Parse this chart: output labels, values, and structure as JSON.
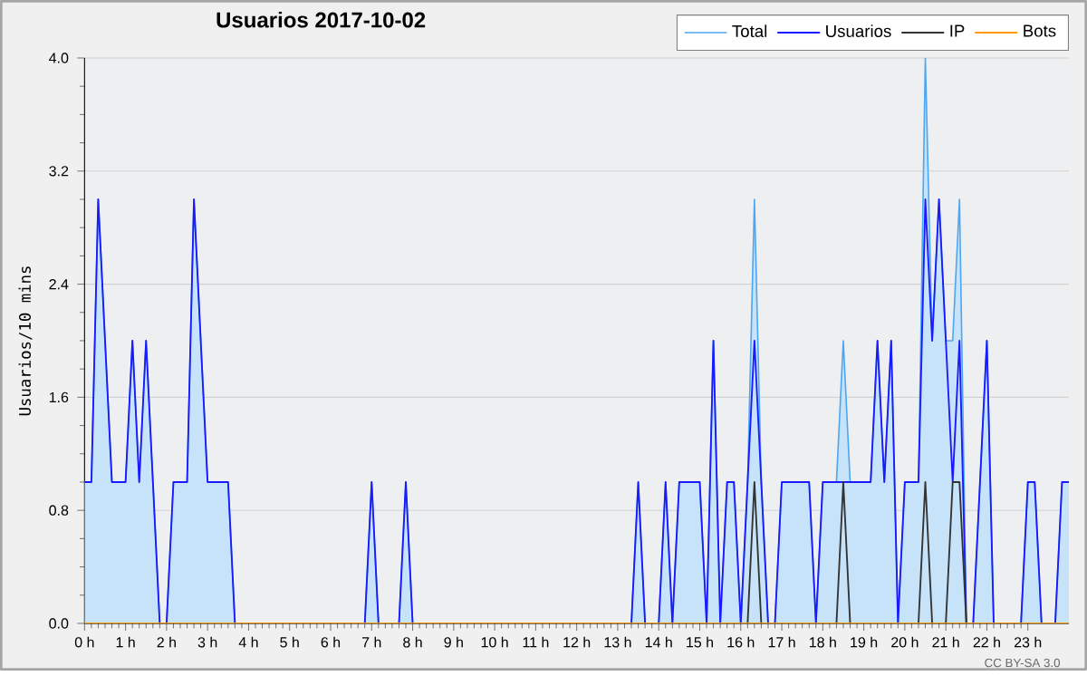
{
  "chart_data": {
    "type": "line",
    "title": "Usuarios  2017-10-02",
    "ylabel": "Usuarios/10 mins",
    "x": [
      0,
      0.167,
      0.333,
      0.5,
      0.667,
      0.833,
      1,
      1.167,
      1.333,
      1.5,
      1.667,
      1.833,
      2,
      2.167,
      2.333,
      2.5,
      2.667,
      2.833,
      3,
      3.167,
      3.333,
      3.5,
      3.667,
      3.833,
      4,
      4.167,
      4.333,
      4.5,
      4.667,
      4.833,
      5,
      5.167,
      5.333,
      5.5,
      5.667,
      5.833,
      6,
      6.167,
      6.333,
      6.5,
      6.667,
      6.833,
      7,
      7.167,
      7.333,
      7.5,
      7.667,
      7.833,
      8,
      8.167,
      8.333,
      8.5,
      8.667,
      8.833,
      9,
      9.167,
      9.333,
      9.5,
      9.667,
      9.833,
      10,
      10.167,
      10.333,
      10.5,
      10.667,
      10.833,
      11,
      11.167,
      11.333,
      11.5,
      11.667,
      11.833,
      12,
      12.167,
      12.333,
      12.5,
      12.667,
      12.833,
      13,
      13.167,
      13.333,
      13.5,
      13.667,
      13.833,
      14,
      14.167,
      14.333,
      14.5,
      14.667,
      14.833,
      15,
      15.167,
      15.333,
      15.5,
      15.667,
      15.833,
      16,
      16.167,
      16.333,
      16.5,
      16.667,
      16.833,
      17,
      17.167,
      17.333,
      17.5,
      17.667,
      17.833,
      18,
      18.167,
      18.333,
      18.5,
      18.667,
      18.833,
      19,
      19.167,
      19.333,
      19.5,
      19.667,
      19.833,
      20,
      20.167,
      20.333,
      20.5,
      20.667,
      20.833,
      21,
      21.167,
      21.333,
      21.5,
      21.667,
      21.833,
      22,
      22.167,
      22.333,
      22.5,
      22.667,
      22.833,
      23,
      23.167,
      23.333,
      23.5,
      23.667,
      23.833,
      24
    ],
    "series": [
      {
        "name": "Total",
        "type": "area",
        "color": "#4ea6f0",
        "values": [
          1,
          1,
          3,
          2,
          1,
          1,
          1,
          2,
          1,
          2,
          1,
          0,
          0,
          1,
          1,
          1,
          3,
          2,
          1,
          1,
          1,
          1,
          0,
          0,
          0,
          0,
          0,
          0,
          0,
          0,
          0,
          0,
          0,
          0,
          0,
          0,
          0,
          0,
          0,
          0,
          0,
          0,
          1,
          0,
          0,
          0,
          0,
          1,
          0,
          0,
          0,
          0,
          0,
          0,
          0,
          0,
          0,
          0,
          0,
          0,
          0,
          0,
          0,
          0,
          0,
          0,
          0,
          0,
          0,
          0,
          0,
          0,
          0,
          0,
          0,
          0,
          0,
          0,
          0,
          0,
          0,
          1,
          0,
          0,
          0,
          1,
          0,
          1,
          1,
          1,
          1,
          0,
          2,
          0,
          1,
          1,
          0,
          1,
          3,
          1,
          0,
          0,
          1,
          1,
          1,
          1,
          1,
          0,
          1,
          1,
          1,
          2,
          1,
          1,
          1,
          1,
          2,
          1,
          2,
          0,
          1,
          1,
          1,
          4,
          2,
          3,
          2,
          2,
          3,
          0,
          0,
          1,
          2,
          0,
          0,
          0,
          0,
          0,
          1,
          1,
          0,
          0,
          0,
          1,
          1
        ]
      },
      {
        "name": "Usuarios",
        "color": "#1a1aff",
        "values": [
          1,
          1,
          3,
          2,
          1,
          1,
          1,
          2,
          1,
          2,
          1,
          0,
          0,
          1,
          1,
          1,
          3,
          2,
          1,
          1,
          1,
          1,
          0,
          0,
          0,
          0,
          0,
          0,
          0,
          0,
          0,
          0,
          0,
          0,
          0,
          0,
          0,
          0,
          0,
          0,
          0,
          0,
          1,
          0,
          0,
          0,
          0,
          1,
          0,
          0,
          0,
          0,
          0,
          0,
          0,
          0,
          0,
          0,
          0,
          0,
          0,
          0,
          0,
          0,
          0,
          0,
          0,
          0,
          0,
          0,
          0,
          0,
          0,
          0,
          0,
          0,
          0,
          0,
          0,
          0,
          0,
          1,
          0,
          0,
          0,
          1,
          0,
          1,
          1,
          1,
          1,
          0,
          2,
          0,
          1,
          1,
          0,
          1,
          2,
          1,
          0,
          0,
          1,
          1,
          1,
          1,
          1,
          0,
          1,
          1,
          1,
          1,
          1,
          1,
          1,
          1,
          2,
          1,
          2,
          0,
          1,
          1,
          1,
          3,
          2,
          3,
          2,
          1,
          2,
          0,
          0,
          1,
          2,
          0,
          0,
          0,
          0,
          0,
          1,
          1,
          0,
          0,
          0,
          1,
          1
        ]
      },
      {
        "name": "IP",
        "color": "#333333",
        "values": [
          0,
          0,
          0,
          0,
          0,
          0,
          0,
          0,
          0,
          0,
          0,
          0,
          0,
          0,
          0,
          0,
          0,
          0,
          0,
          0,
          0,
          0,
          0,
          0,
          0,
          0,
          0,
          0,
          0,
          0,
          0,
          0,
          0,
          0,
          0,
          0,
          0,
          0,
          0,
          0,
          0,
          0,
          0,
          0,
          0,
          0,
          0,
          0,
          0,
          0,
          0,
          0,
          0,
          0,
          0,
          0,
          0,
          0,
          0,
          0,
          0,
          0,
          0,
          0,
          0,
          0,
          0,
          0,
          0,
          0,
          0,
          0,
          0,
          0,
          0,
          0,
          0,
          0,
          0,
          0,
          0,
          0,
          0,
          0,
          0,
          0,
          0,
          0,
          0,
          0,
          0,
          0,
          0,
          0,
          0,
          0,
          0,
          0,
          1,
          0,
          0,
          0,
          0,
          0,
          0,
          0,
          0,
          0,
          0,
          0,
          0,
          1,
          0,
          0,
          0,
          0,
          0,
          0,
          0,
          0,
          0,
          0,
          0,
          1,
          0,
          0,
          0,
          1,
          1,
          0,
          0,
          0,
          0,
          0,
          0,
          0,
          0,
          0,
          0,
          0,
          0,
          0,
          0,
          0,
          0
        ]
      },
      {
        "name": "Bots",
        "color": "#ff9900",
        "values": [
          0,
          0,
          0,
          0,
          0,
          0,
          0,
          0,
          0,
          0,
          0,
          0,
          0,
          0,
          0,
          0,
          0,
          0,
          0,
          0,
          0,
          0,
          0,
          0,
          0,
          0,
          0,
          0,
          0,
          0,
          0,
          0,
          0,
          0,
          0,
          0,
          0,
          0,
          0,
          0,
          0,
          0,
          0,
          0,
          0,
          0,
          0,
          0,
          0,
          0,
          0,
          0,
          0,
          0,
          0,
          0,
          0,
          0,
          0,
          0,
          0,
          0,
          0,
          0,
          0,
          0,
          0,
          0,
          0,
          0,
          0,
          0,
          0,
          0,
          0,
          0,
          0,
          0,
          0,
          0,
          0,
          0,
          0,
          0,
          0,
          0,
          0,
          0,
          0,
          0,
          0,
          0,
          0,
          0,
          0,
          0,
          0,
          0,
          0,
          0,
          0,
          0,
          0,
          0,
          0,
          0,
          0,
          0,
          0,
          0,
          0,
          0,
          0,
          0,
          0,
          0,
          0,
          0,
          0,
          0,
          0,
          0,
          0,
          0,
          0,
          0,
          0,
          0,
          0,
          0,
          0,
          0,
          0,
          0,
          0,
          0,
          0,
          0,
          0,
          0,
          0,
          0,
          0,
          0,
          0
        ]
      }
    ],
    "xlim": [
      0,
      24
    ],
    "xticks": [
      {
        "value": 0,
        "label": "0 h"
      },
      {
        "value": 1,
        "label": "1 h"
      },
      {
        "value": 2,
        "label": "2 h"
      },
      {
        "value": 3,
        "label": "3 h"
      },
      {
        "value": 4,
        "label": "4 h"
      },
      {
        "value": 5,
        "label": "5 h"
      },
      {
        "value": 6,
        "label": "6 h"
      },
      {
        "value": 7,
        "label": "7 h"
      },
      {
        "value": 8,
        "label": "8 h"
      },
      {
        "value": 9,
        "label": "9 h"
      },
      {
        "value": 10,
        "label": "10 h"
      },
      {
        "value": 11,
        "label": "11 h"
      },
      {
        "value": 12,
        "label": "12 h"
      },
      {
        "value": 13,
        "label": "13 h"
      },
      {
        "value": 14,
        "label": "14 h"
      },
      {
        "value": 15,
        "label": "15 h"
      },
      {
        "value": 16,
        "label": "16 h"
      },
      {
        "value": 17,
        "label": "17 h"
      },
      {
        "value": 18,
        "label": "18 h"
      },
      {
        "value": 19,
        "label": "19 h"
      },
      {
        "value": 20,
        "label": "20 h"
      },
      {
        "value": 21,
        "label": "21 h"
      },
      {
        "value": 22,
        "label": "22 h"
      },
      {
        "value": 23,
        "label": "23 h"
      }
    ],
    "ylim": [
      0,
      4
    ],
    "yticks": [
      {
        "value": 0,
        "label": "0.0"
      },
      {
        "value": 0.8,
        "label": "0.8"
      },
      {
        "value": 1.6,
        "label": "1.6"
      },
      {
        "value": 2.4,
        "label": "2.4"
      },
      {
        "value": 3.2,
        "label": "3.2"
      },
      {
        "value": 4,
        "label": "4.0"
      }
    ],
    "grid": "y",
    "legend": "top right",
    "annotations": [
      "CC BY-SA 3.0"
    ]
  }
}
